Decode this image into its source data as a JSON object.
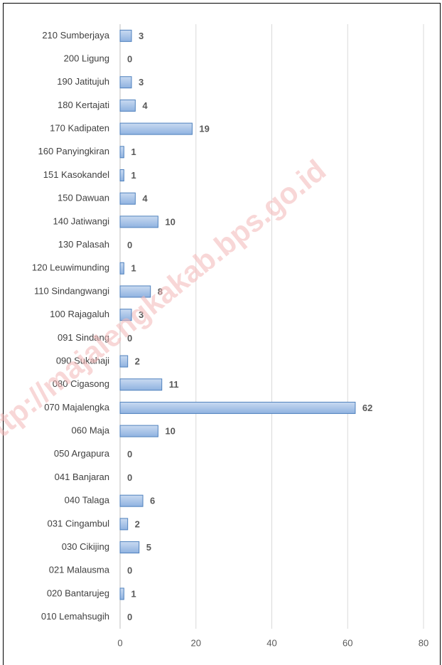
{
  "chart_data": {
    "type": "bar",
    "orientation": "horizontal",
    "categories": [
      "210 Sumberjaya",
      "200 Ligung",
      "190 Jatitujuh",
      "180 Kertajati",
      "170 Kadipaten",
      "160 Panyingkiran",
      "151 Kasokandel",
      "150 Dawuan",
      "140 Jatiwangi",
      "130 Palasah",
      "120 Leuwimunding",
      "110 Sindangwangi",
      "100 Rajagaluh",
      "091 Sindang",
      "090 Sukahaji",
      "080 Cigasong",
      "070 Majalengka",
      "060 Maja",
      "050 Argapura",
      "041 Banjaran",
      "040 Talaga",
      "031 Cingambul",
      "030 Cikijing",
      "021 Malausma",
      "020 Bantarujeg",
      "010 Lemahsugih"
    ],
    "values": [
      3,
      0,
      3,
      4,
      19,
      1,
      1,
      4,
      10,
      0,
      1,
      8,
      3,
      0,
      2,
      11,
      62,
      10,
      0,
      0,
      6,
      2,
      5,
      0,
      1,
      0
    ],
    "color": "#a7c4e8",
    "edge_color": "#4f81bd",
    "xlim": [
      0,
      80
    ],
    "xticks": [
      0,
      20,
      40,
      60,
      80
    ],
    "grid": true,
    "watermark": "http://majalengkakab.bps.go.id"
  }
}
